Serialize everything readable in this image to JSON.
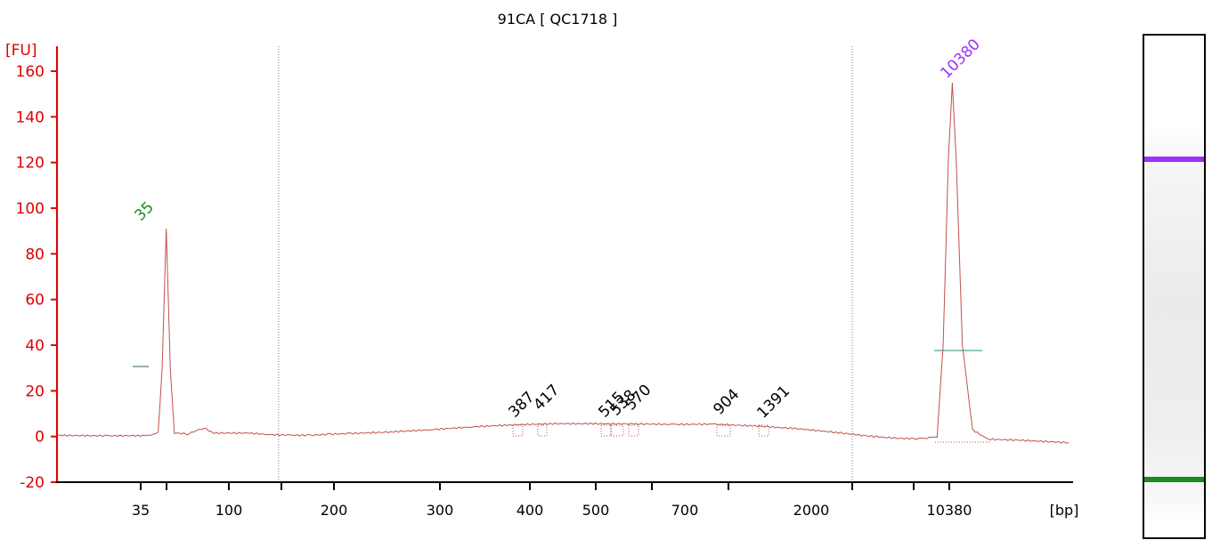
{
  "chart_data": {
    "type": "line",
    "title": "91CA  [ QC1718 ]",
    "y_unit": "[FU]",
    "x_unit": "[bp]",
    "ylim": [
      -20,
      165
    ],
    "yticks": [
      -20,
      0,
      20,
      40,
      60,
      80,
      100,
      120,
      140,
      160
    ],
    "xticks": [
      "35",
      "100",
      "200",
      "300",
      "400",
      "500",
      "700",
      "2000",
      "10380"
    ],
    "grid": false,
    "colors": {
      "trace": "#c0504d",
      "axis": "#e00000",
      "marker_lower": "#1a8a1a",
      "marker_upper": "#9b30ff",
      "peak_label": "#000000",
      "region_line": "#6d7fb5"
    },
    "peaks": [
      {
        "label": "35",
        "fu": 91,
        "kind": "lower-marker"
      },
      {
        "label": "387",
        "fu": 0
      },
      {
        "label": "417",
        "fu": 0
      },
      {
        "label": "515",
        "fu": 0
      },
      {
        "label": "538",
        "fu": 0
      },
      {
        "label": "570",
        "fu": 0
      },
      {
        "label": "904",
        "fu": 0
      },
      {
        "label": "1391",
        "fu": 0
      },
      {
        "label": "10380",
        "fu": 155,
        "kind": "upper-marker"
      }
    ],
    "trace": {
      "x_axis": "time (arbitrary units 0-1 across plot)",
      "points": [
        [
          0.0,
          0.5
        ],
        [
          0.05,
          0.3
        ],
        [
          0.09,
          0.4
        ],
        [
          0.1,
          1.5
        ],
        [
          0.104,
          30
        ],
        [
          0.108,
          91
        ],
        [
          0.112,
          30
        ],
        [
          0.116,
          1.5
        ],
        [
          0.13,
          1.2
        ],
        [
          0.145,
          3.8
        ],
        [
          0.155,
          1.5
        ],
        [
          0.19,
          1.5
        ],
        [
          0.21,
          0.8
        ],
        [
          0.23,
          0.6
        ],
        [
          0.25,
          0.5
        ],
        [
          0.27,
          1
        ],
        [
          0.29,
          1.3
        ],
        [
          0.33,
          2
        ],
        [
          0.37,
          3
        ],
        [
          0.41,
          4.2
        ],
        [
          0.45,
          5.1
        ],
        [
          0.49,
          5.6
        ],
        [
          0.53,
          5.6
        ],
        [
          0.57,
          5.5
        ],
        [
          0.61,
          5.3
        ],
        [
          0.65,
          5.4
        ],
        [
          0.69,
          4.6
        ],
        [
          0.73,
          3.5
        ],
        [
          0.77,
          1.8
        ],
        [
          0.8,
          0.3
        ],
        [
          0.83,
          -0.8
        ],
        [
          0.85,
          -0.9
        ],
        [
          0.86,
          -0.6
        ],
        [
          0.87,
          0
        ],
        [
          0.876,
          40
        ],
        [
          0.881,
          120
        ],
        [
          0.885,
          155
        ],
        [
          0.889,
          120
        ],
        [
          0.895,
          40
        ],
        [
          0.905,
          3
        ],
        [
          0.92,
          -1.2
        ],
        [
          0.95,
          -1.6
        ],
        [
          1.0,
          -2.7
        ]
      ]
    },
    "gel_bands": [
      {
        "label": "10380",
        "color": "#9b30ff"
      },
      {
        "label": "35",
        "color": "#1a8a1a"
      }
    ]
  }
}
